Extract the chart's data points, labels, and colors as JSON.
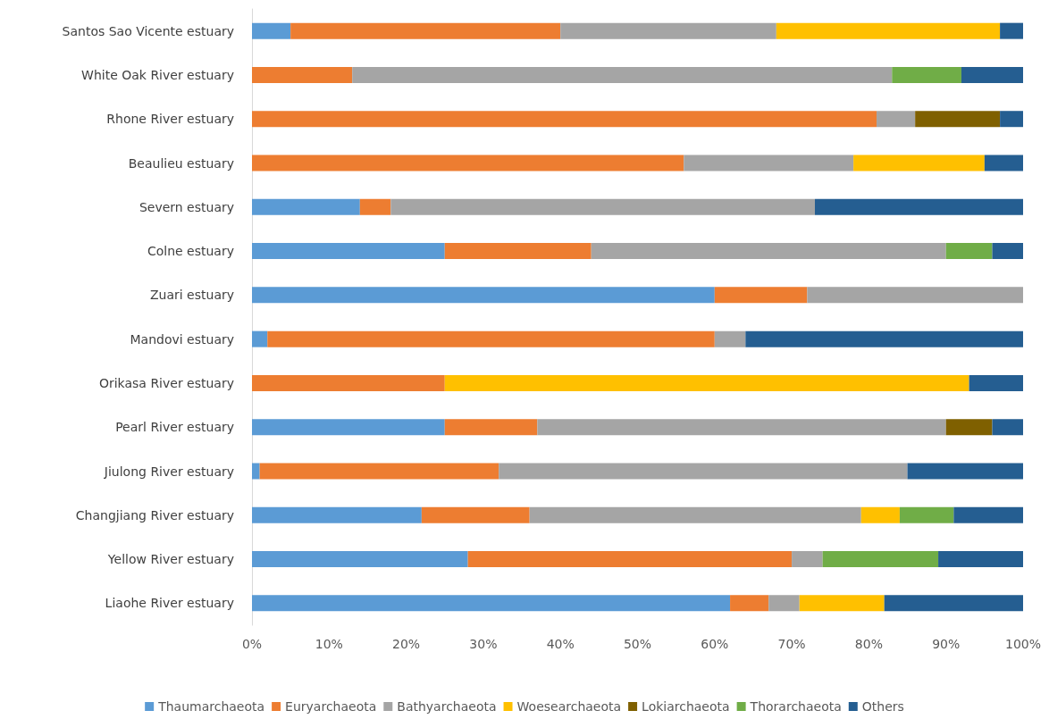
{
  "chart_data": {
    "type": "bar",
    "orientation": "horizontal",
    "stacked": true,
    "categories": [
      "Santos Sao Vicente estuary",
      "White Oak River estuary",
      "Rhone River estuary",
      "Beaulieu estuary",
      "Severn estuary",
      "Colne estuary",
      "Zuari estuary",
      "Mandovi estuary",
      "Orikasa River estuary",
      "Pearl River estuary",
      "Jiulong River estuary",
      "Changjiang River estuary",
      "Yellow River estuary",
      "Liaohe River estuary"
    ],
    "series": [
      {
        "name": "Thaumarchaeota",
        "color": "#5b9bd5",
        "values": [
          5,
          null,
          null,
          null,
          14,
          25,
          60,
          2,
          null,
          25,
          1,
          22,
          28,
          62
        ]
      },
      {
        "name": "Euryarchaeota",
        "color": "#ed7d31",
        "values": [
          35,
          13,
          81,
          56,
          4,
          19,
          12,
          58,
          25,
          12,
          31,
          14,
          42,
          5
        ]
      },
      {
        "name": "Bathyarchaeota",
        "color": "#a5a5a5",
        "values": [
          28,
          70,
          5,
          22,
          55,
          46,
          28,
          4,
          null,
          53,
          53,
          43,
          4,
          4
        ]
      },
      {
        "name": "Woesearchaeota",
        "color": "#ffc000",
        "values": [
          29,
          null,
          null,
          17,
          null,
          null,
          null,
          null,
          68,
          null,
          null,
          5,
          null,
          11
        ]
      },
      {
        "name": "Lokiarchaeota",
        "color": "#7f6000",
        "values": [
          null,
          null,
          11,
          null,
          null,
          null,
          null,
          null,
          null,
          6,
          null,
          null,
          null,
          null
        ]
      },
      {
        "name": "Thorarchaeota",
        "color": "#70ad47",
        "values": [
          null,
          9,
          null,
          null,
          null,
          6,
          null,
          null,
          null,
          null,
          null,
          7,
          15,
          null
        ]
      },
      {
        "name": "Others",
        "color": "#255e91",
        "values": [
          3,
          8,
          3,
          5,
          27,
          4,
          null,
          36,
          7,
          4,
          15,
          9,
          11,
          18
        ]
      }
    ],
    "xlim": [
      0,
      100
    ],
    "xticks": [
      {
        "value": 0,
        "label": "0%"
      },
      {
        "value": 10,
        "label": "10%"
      },
      {
        "value": 20,
        "label": "20%"
      },
      {
        "value": 30,
        "label": "30%"
      },
      {
        "value": 40,
        "label": "40%"
      },
      {
        "value": 50,
        "label": "50%"
      },
      {
        "value": 60,
        "label": "60%"
      },
      {
        "value": 70,
        "label": "70%"
      },
      {
        "value": 80,
        "label": "80%"
      },
      {
        "value": 90,
        "label": "90%"
      },
      {
        "value": 100,
        "label": "100%"
      }
    ],
    "grid": false,
    "legend": "bottom"
  }
}
